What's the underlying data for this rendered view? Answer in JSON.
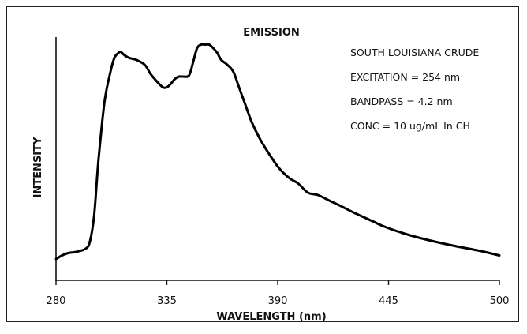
{
  "chart_data": {
    "type": "line",
    "title": "EMISSION",
    "xlabel": "WAVELENGTH (nm)",
    "ylabel": "INTENSITY",
    "xlim": [
      280,
      500
    ],
    "ylim": [
      0,
      100
    ],
    "x_ticks": [
      280,
      335,
      390,
      445,
      500
    ],
    "grid": false,
    "annotations": [
      "SOUTH LOUISIANA CRUDE",
      "EXCITATION = 254 nm",
      "BANDPASS = 4.2 nm",
      "CONC = 10 ug/mL In CH"
    ],
    "series": [
      {
        "color": "#000000",
        "x": [
          280,
          283,
          286,
          290,
          295,
          297,
          299,
          301,
          304,
          307,
          309,
          311,
          312,
          314,
          316,
          318,
          320,
          324,
          327,
          330,
          333,
          335,
          337,
          339,
          341,
          343,
          346,
          348,
          350,
          352,
          354,
          356,
          358,
          360,
          362,
          365,
          368,
          371,
          374,
          377,
          381,
          386,
          391,
          396,
          400,
          405,
          410,
          416,
          421,
          428,
          437,
          442,
          450,
          460,
          475,
          490,
          500
        ],
        "y": [
          9,
          10.5,
          11.5,
          12,
          13.5,
          17,
          28,
          50,
          75,
          88,
          94,
          96,
          96.5,
          95,
          94,
          93.5,
          93,
          91,
          87,
          84,
          81.5,
          81.5,
          83,
          85,
          86,
          86,
          86.5,
          92,
          98,
          99.5,
          99.5,
          99.5,
          98,
          96,
          93,
          91,
          88,
          81,
          74,
          67,
          60,
          53,
          47,
          43,
          41,
          37,
          36,
          33.5,
          31.5,
          28.5,
          25,
          23,
          20.5,
          18,
          15,
          12.5,
          10.5
        ]
      }
    ]
  }
}
